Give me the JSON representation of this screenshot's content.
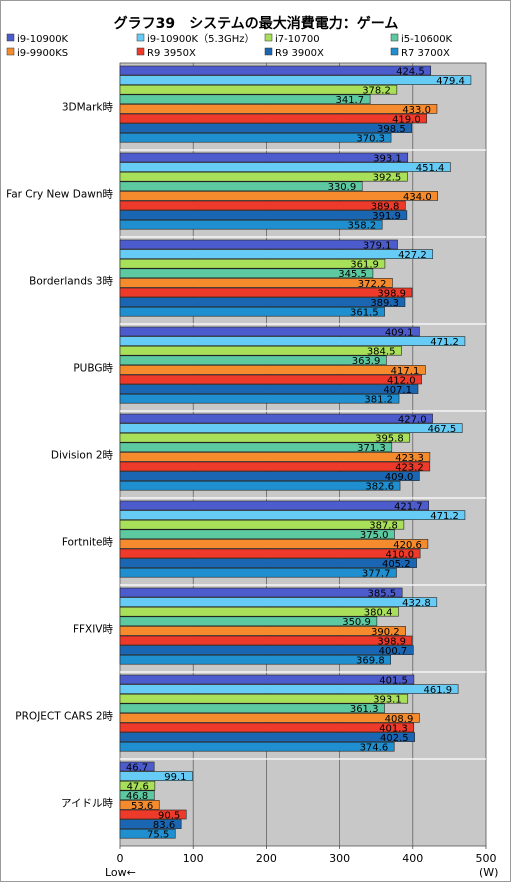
{
  "chart_data": {
    "type": "bar",
    "orientation": "horizontal",
    "title": "グラフ39　システムの最大消費電力：ゲーム",
    "xlabel": "",
    "x_unit": "(W)",
    "x_direction_note": "Low←",
    "xlim": [
      0,
      500
    ],
    "x_ticks": [
      0,
      100,
      200,
      300,
      400,
      500
    ],
    "grid": true,
    "legend_position": "top",
    "categories": [
      "3DMark時",
      "Far Cry New Dawn時",
      "Borderlands 3時",
      "PUBG時",
      "Division 2時",
      "Fortnite時",
      "FFXIV時",
      "PROJECT CARS 2時",
      "アイドル時"
    ],
    "series": [
      {
        "name": "i9-10900K",
        "color": "#4d5ccc",
        "values": [
          424.5,
          393.1,
          379.1,
          409.1,
          427.0,
          421.7,
          385.5,
          401.5,
          46.7
        ]
      },
      {
        "name": "i9-10900K（5.3GHz）",
        "color": "#66ccf5",
        "values": [
          479.4,
          451.4,
          427.2,
          471.2,
          467.5,
          471.2,
          432.8,
          461.9,
          99.1
        ]
      },
      {
        "name": "i7-10700",
        "color": "#a8e05a",
        "values": [
          378.2,
          392.5,
          361.9,
          384.5,
          395.8,
          387.8,
          380.4,
          393.1,
          47.6
        ]
      },
      {
        "name": "i5-10600K",
        "color": "#5cc9a0",
        "values": [
          341.7,
          330.9,
          345.5,
          363.9,
          371.3,
          375.0,
          350.9,
          361.3,
          46.8
        ]
      },
      {
        "name": "i9-9900KS",
        "color": "#f58b2c",
        "values": [
          433.0,
          434.0,
          372.2,
          417.1,
          423.3,
          420.6,
          390.2,
          408.9,
          53.6
        ]
      },
      {
        "name": "R9 3950X",
        "color": "#ee3a2a",
        "values": [
          419.0,
          389.8,
          398.9,
          412.0,
          423.2,
          410.0,
          398.9,
          401.3,
          90.5
        ]
      },
      {
        "name": "R9 3900X",
        "color": "#1a66b3",
        "values": [
          398.5,
          391.9,
          389.3,
          407.1,
          409.0,
          405.2,
          400.7,
          402.5,
          83.6
        ]
      },
      {
        "name": "R7 3700X",
        "color": "#1f8fd0",
        "values": [
          370.3,
          358.2,
          361.5,
          381.2,
          382.6,
          377.7,
          369.8,
          374.6,
          75.5
        ]
      }
    ]
  }
}
